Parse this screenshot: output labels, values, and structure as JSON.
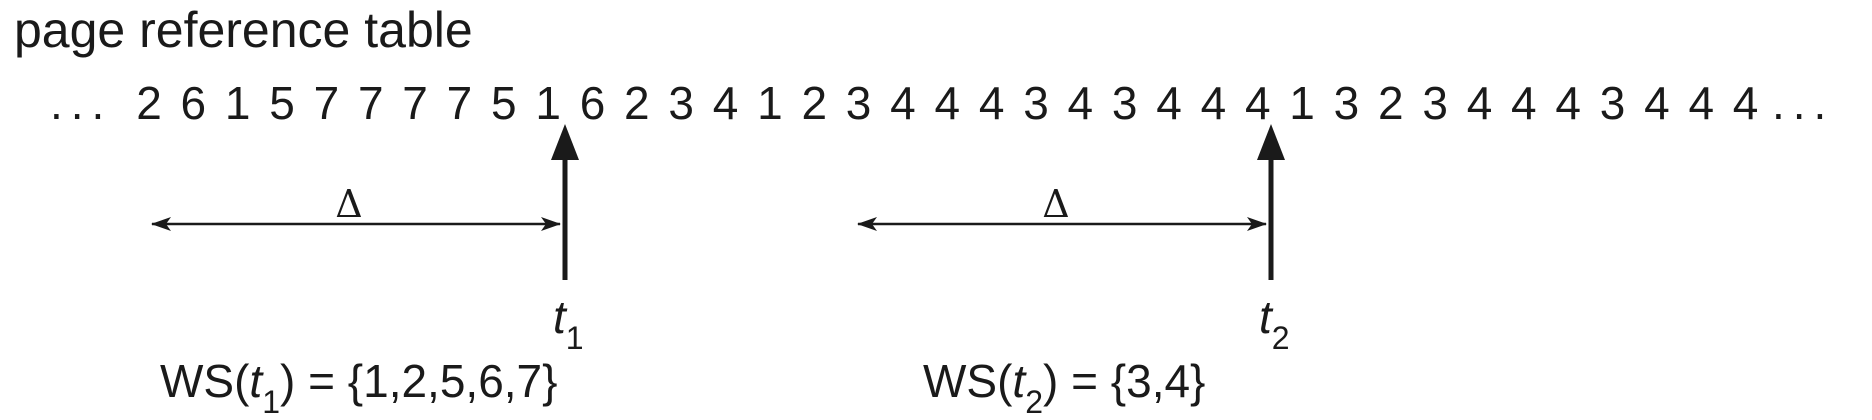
{
  "title": "page reference table",
  "reference_string": {
    "leading_ellipsis": "...",
    "trailing_ellipsis": "...",
    "pages": [
      "2",
      "6",
      "1",
      "5",
      "7",
      "7",
      "7",
      "7",
      "5",
      "1",
      "6",
      "2",
      "3",
      "4",
      "1",
      "2",
      "3",
      "4",
      "4",
      "4",
      "3",
      "4",
      "3",
      "4",
      "4",
      "4",
      "1",
      "3",
      "2",
      "3",
      "4",
      "4",
      "4",
      "3",
      "4",
      "4",
      "4"
    ]
  },
  "markers": [
    {
      "delta_symbol": "Δ",
      "time_var": "t",
      "time_sub": "1",
      "ws_prefix": "WS(",
      "ws_suffix": ") = {1,2,5,6,7}"
    },
    {
      "delta_symbol": "Δ",
      "time_var": "t",
      "time_sub": "2",
      "ws_prefix": "WS(",
      "ws_suffix": ") = {3,4}"
    }
  ]
}
